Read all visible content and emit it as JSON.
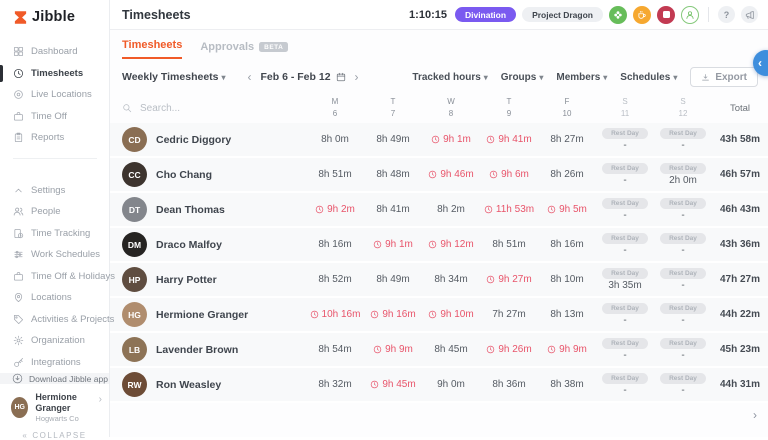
{
  "brand": {
    "name": "Jibble"
  },
  "colors": {
    "accent_orange": "#f05a28",
    "overtime_red": "#e8546a",
    "activity_purple": "#7a5af0",
    "timer_green": "#67bd5a",
    "timer_break_orange": "#f6a830",
    "timer_stop_red": "#c23a52",
    "float_button_blue": "#3e8edd"
  },
  "sidebar": {
    "nav": [
      {
        "label": "Dashboard",
        "icon": "grid"
      },
      {
        "label": "Timesheets",
        "icon": "clock",
        "active": true
      },
      {
        "label": "Live Locations",
        "icon": "target"
      },
      {
        "label": "Time Off",
        "icon": "briefcase"
      },
      {
        "label": "Reports",
        "icon": "clipboard"
      }
    ],
    "settings_nav": [
      {
        "label": "Settings",
        "icon": "chevron-up"
      },
      {
        "label": "People",
        "icon": "users"
      },
      {
        "label": "Time Tracking",
        "icon": "doc-clock"
      },
      {
        "label": "Work Schedules",
        "icon": "sliders"
      },
      {
        "label": "Time Off & Holidays",
        "icon": "briefcase"
      },
      {
        "label": "Locations",
        "icon": "pin"
      },
      {
        "label": "Activities & Projects",
        "icon": "tag"
      },
      {
        "label": "Organization",
        "icon": "gear"
      },
      {
        "label": "Integrations",
        "icon": "key"
      }
    ],
    "download_label": "Download Jibble app",
    "user": {
      "name": "Hermione Granger",
      "org": "Hogwarts Co"
    },
    "collapse_label": "COLLAPSE"
  },
  "header": {
    "title": "Timesheets",
    "timer": "1:10:15",
    "activity_badge": "Divination",
    "project_badge": "Project Dragon"
  },
  "tabs": [
    {
      "label": "Timesheets",
      "active": true
    },
    {
      "label": "Approvals",
      "badge": "BETA"
    }
  ],
  "toolbar": {
    "view_dropdown": "Weekly Timesheets",
    "prev_arrow": "‹",
    "date_range": "Feb 6 - Feb 12",
    "next_arrow": "›",
    "filters": [
      "Tracked hours",
      "Groups",
      "Members",
      "Schedules"
    ],
    "export_label": "Export"
  },
  "table": {
    "search_placeholder": "Search...",
    "columns": [
      {
        "day": "M",
        "date": "6"
      },
      {
        "day": "T",
        "date": "7"
      },
      {
        "day": "W",
        "date": "8"
      },
      {
        "day": "T",
        "date": "9"
      },
      {
        "day": "F",
        "date": "10"
      },
      {
        "day": "S",
        "date": "11",
        "weekend": true
      },
      {
        "day": "S",
        "date": "12",
        "weekend": true
      }
    ],
    "total_label": "Total",
    "rest_day_label": "Rest Day",
    "rows": [
      {
        "name": "Cedric Diggory",
        "cells": [
          {
            "v": "8h 0m"
          },
          {
            "v": "8h 49m"
          },
          {
            "v": "9h 1m",
            "overtime": true
          },
          {
            "v": "9h 41m",
            "overtime": true
          },
          {
            "v": "8h 27m"
          },
          {
            "rest": true,
            "v": "-"
          },
          {
            "rest": true,
            "v": "-"
          }
        ],
        "total": "43h 58m"
      },
      {
        "name": "Cho Chang",
        "cells": [
          {
            "v": "8h 51m"
          },
          {
            "v": "8h 48m"
          },
          {
            "v": "9h 46m",
            "overtime": true
          },
          {
            "v": "9h 6m",
            "overtime": true
          },
          {
            "v": "8h 26m"
          },
          {
            "rest": true,
            "v": "-"
          },
          {
            "rest": true,
            "v": "2h 0m"
          }
        ],
        "total": "46h 57m"
      },
      {
        "name": "Dean Thomas",
        "cells": [
          {
            "v": "9h 2m",
            "overtime": true
          },
          {
            "v": "8h 41m"
          },
          {
            "v": "8h 2m"
          },
          {
            "v": "11h 53m",
            "overtime": true
          },
          {
            "v": "9h 5m",
            "overtime": true
          },
          {
            "rest": true,
            "v": "-"
          },
          {
            "rest": true,
            "v": "-"
          }
        ],
        "total": "46h 43m"
      },
      {
        "name": "Draco Malfoy",
        "cells": [
          {
            "v": "8h 16m"
          },
          {
            "v": "9h 1m",
            "overtime": true
          },
          {
            "v": "9h 12m",
            "overtime": true
          },
          {
            "v": "8h 51m"
          },
          {
            "v": "8h 16m"
          },
          {
            "rest": true,
            "v": "-"
          },
          {
            "rest": true,
            "v": "-"
          }
        ],
        "total": "43h 36m"
      },
      {
        "name": "Harry Potter",
        "cells": [
          {
            "v": "8h 52m"
          },
          {
            "v": "8h 49m"
          },
          {
            "v": "8h 34m"
          },
          {
            "v": "9h 27m",
            "overtime": true
          },
          {
            "v": "8h 10m"
          },
          {
            "rest": true,
            "v": "3h 35m"
          },
          {
            "rest": true,
            "v": "-"
          }
        ],
        "total": "47h 27m"
      },
      {
        "name": "Hermione Granger",
        "cells": [
          {
            "v": "10h 16m",
            "overtime": true
          },
          {
            "v": "9h 16m",
            "overtime": true
          },
          {
            "v": "9h 10m",
            "overtime": true
          },
          {
            "v": "7h 27m"
          },
          {
            "v": "8h 13m"
          },
          {
            "rest": true,
            "v": "-"
          },
          {
            "rest": true,
            "v": "-"
          }
        ],
        "total": "44h 22m"
      },
      {
        "name": "Lavender Brown",
        "cells": [
          {
            "v": "8h 54m"
          },
          {
            "v": "9h 9m",
            "overtime": true
          },
          {
            "v": "8h 45m"
          },
          {
            "v": "9h 26m",
            "overtime": true
          },
          {
            "v": "9h 9m",
            "overtime": true
          },
          {
            "rest": true,
            "v": "-"
          },
          {
            "rest": true,
            "v": "-"
          }
        ],
        "total": "45h 23m"
      },
      {
        "name": "Ron Weasley",
        "cells": [
          {
            "v": "8h 32m"
          },
          {
            "v": "9h 45m",
            "overtime": true
          },
          {
            "v": "9h 0m"
          },
          {
            "v": "8h 36m"
          },
          {
            "v": "8h 38m"
          },
          {
            "rest": true,
            "v": "-"
          },
          {
            "rest": true,
            "v": "-"
          }
        ],
        "total": "44h 31m"
      }
    ]
  }
}
